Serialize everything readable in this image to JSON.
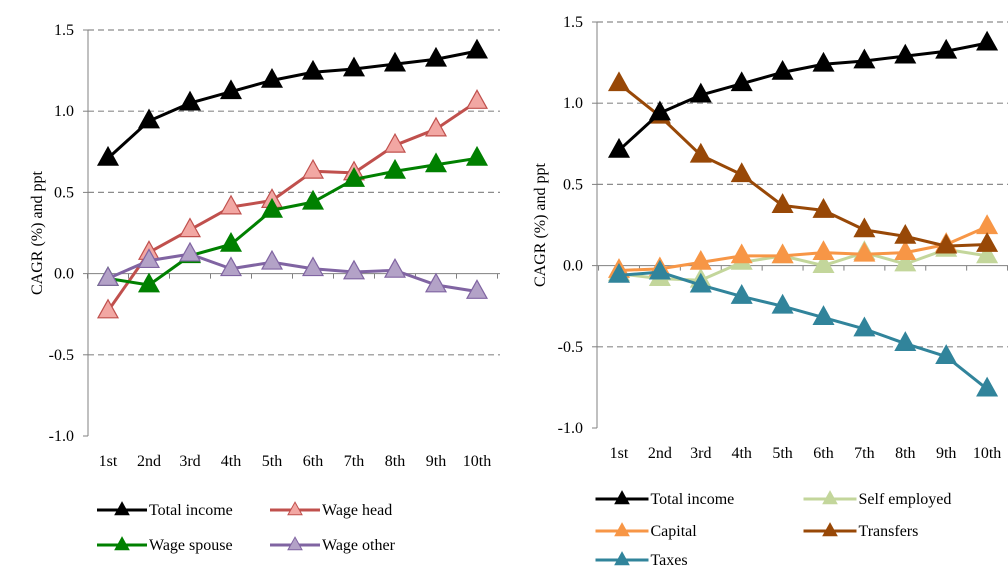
{
  "chart_data": [
    {
      "type": "line",
      "ylabel": "CAGR (%) and ppt",
      "ylim": [
        -1.0,
        1.5
      ],
      "yticks": [
        "-1.0",
        "-0.5",
        "0.0",
        "0.5",
        "1.0",
        "1.5"
      ],
      "grid": "horizontal dashed",
      "legend_position": "bottom",
      "categories": [
        "1st",
        "2nd",
        "3rd",
        "4th",
        "5th",
        "6th",
        "7th",
        "8th",
        "9th",
        "10th"
      ],
      "series": [
        {
          "name": "Total income",
          "color": "#000000",
          "marker_fill": "#000000",
          "values": [
            0.71,
            0.94,
            1.05,
            1.12,
            1.19,
            1.24,
            1.26,
            1.29,
            1.32,
            1.37
          ]
        },
        {
          "name": "Wage head",
          "color": "#c0504d",
          "marker_fill": "#f2a7a3",
          "values": [
            -0.23,
            0.13,
            0.27,
            0.41,
            0.45,
            0.63,
            0.62,
            0.79,
            0.89,
            1.06
          ]
        },
        {
          "name": "Wage spouse",
          "color": "#008000",
          "marker_fill": "#008000",
          "values": [
            -0.03,
            -0.07,
            0.11,
            0.18,
            0.39,
            0.44,
            0.58,
            0.63,
            0.67,
            0.71
          ]
        },
        {
          "name": "Wage other",
          "color": "#8064a2",
          "marker_fill": "#b3a2c7",
          "values": [
            -0.03,
            0.08,
            0.12,
            0.03,
            0.07,
            0.03,
            0.01,
            0.02,
            -0.07,
            -0.11
          ]
        }
      ]
    },
    {
      "type": "line",
      "ylabel": "CAGR (%) and ppt",
      "ylim": [
        -1.0,
        1.5
      ],
      "yticks": [
        "-1.0",
        "-0.5",
        "0.0",
        "0.5",
        "1.0",
        "1.5"
      ],
      "grid": "horizontal dashed",
      "legend_position": "bottom",
      "categories": [
        "1st",
        "2nd",
        "3rd",
        "4th",
        "5th",
        "6th",
        "7th",
        "8th",
        "9th",
        "10th"
      ],
      "series": [
        {
          "name": "Total income",
          "color": "#000000",
          "marker_fill": "#000000",
          "values": [
            0.71,
            0.94,
            1.05,
            1.12,
            1.19,
            1.24,
            1.26,
            1.29,
            1.32,
            1.37
          ]
        },
        {
          "name": "Self employed",
          "color": "#c3d69b",
          "marker_fill": "#c3d69b",
          "values": [
            -0.05,
            -0.08,
            -0.09,
            0.02,
            0.06,
            0.0,
            0.08,
            0.01,
            0.1,
            0.06
          ]
        },
        {
          "name": "Capital",
          "color": "#f79646",
          "marker_fill": "#f79646",
          "values": [
            -0.03,
            -0.02,
            0.02,
            0.06,
            0.06,
            0.08,
            0.07,
            0.08,
            0.13,
            0.24
          ]
        },
        {
          "name": "Transfers",
          "color": "#984807",
          "marker_fill": "#984807",
          "values": [
            1.12,
            0.92,
            0.68,
            0.56,
            0.37,
            0.34,
            0.22,
            0.18,
            0.12,
            0.13
          ]
        },
        {
          "name": "Taxes",
          "color": "#31849b",
          "marker_fill": "#31849b",
          "values": [
            -0.06,
            -0.04,
            -0.12,
            -0.19,
            -0.25,
            -0.32,
            -0.39,
            -0.48,
            -0.56,
            -0.76
          ]
        }
      ]
    }
  ]
}
